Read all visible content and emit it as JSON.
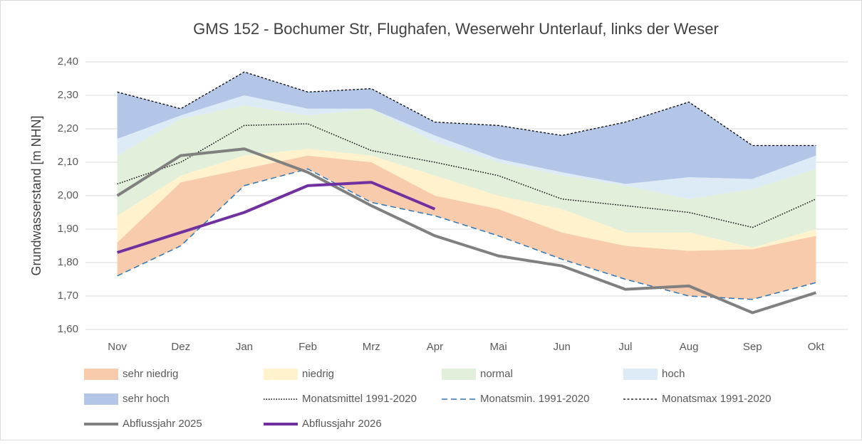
{
  "chart_data": {
    "type": "line",
    "title": "GMS 152 - Bochumer Str, Flughafen, Weserwehr Unterlauf, links der Weser",
    "y_label": "Grundwasserstand [m NHN]",
    "categories": [
      "Nov",
      "Dez",
      "Jan",
      "Feb",
      "Mrz",
      "Apr",
      "Mai",
      "Jun",
      "Jul",
      "Aug",
      "Sep",
      "Okt"
    ],
    "ylim": [
      1.6,
      2.4
    ],
    "yticks": [
      {
        "value": 1.6,
        "label": "1,60"
      },
      {
        "value": 1.7,
        "label": "1,70"
      },
      {
        "value": 1.8,
        "label": "1,80"
      },
      {
        "value": 1.9,
        "label": "1,90"
      },
      {
        "value": 2.0,
        "label": "2,00"
      },
      {
        "value": 2.1,
        "label": "2,10"
      },
      {
        "value": 2.2,
        "label": "2,20"
      },
      {
        "value": 2.3,
        "label": "2,30"
      },
      {
        "value": 2.4,
        "label": "2,40"
      }
    ],
    "grid": true,
    "legend": "bottom",
    "series": [
      {
        "name": "sehr niedrig",
        "type": "area",
        "color": "#f8cbad",
        "values": [
          0.1,
          0.19,
          0.05,
          0.04,
          0.12,
          0.06,
          0.08,
          0.08,
          0.1,
          0.135,
          0.15,
          0.14
        ]
      },
      {
        "name": "niedrig",
        "type": "area",
        "color": "#fff2cc",
        "values": [
          0.08,
          0.02,
          0.04,
          0.02,
          0.02,
          0.06,
          0.04,
          0.07,
          0.04,
          0.055,
          0.005,
          0.02
        ]
      },
      {
        "name": "normal",
        "type": "area",
        "color": "#e2efda",
        "values": [
          0.18,
          0.17,
          0.15,
          0.1,
          0.14,
          0.1,
          0.1,
          0.1,
          0.14,
          0.1,
          0.175,
          0.18
        ]
      },
      {
        "name": "hoch",
        "type": "area",
        "color": "#ddebf7",
        "values": [
          0.05,
          0.01,
          0.03,
          0.02,
          0,
          0.02,
          0.01,
          0.01,
          0.005,
          0.065,
          0.03,
          0.04
        ]
      },
      {
        "name": "sehr hoch",
        "type": "area",
        "color": "#b4c6e7",
        "values": [
          0.14,
          0.02,
          0.07,
          0.05,
          0.06,
          0.04,
          0.1,
          0.11,
          0.185,
          0.225,
          0.1,
          0.03
        ]
      },
      {
        "name": "Monatsmittel 1991-2020",
        "type": "line",
        "color": "#000000",
        "line_style": "dotted",
        "values": [
          2.035,
          2.1,
          2.21,
          2.215,
          2.135,
          2.1,
          2.06,
          1.99,
          1.97,
          1.95,
          1.905,
          1.99
        ]
      },
      {
        "name": "Monatsmin. 1991-2020",
        "type": "line",
        "color": "#2e75b6",
        "line_style": "dashed",
        "values": [
          1.76,
          1.85,
          2.03,
          2.08,
          1.98,
          1.94,
          1.88,
          1.81,
          1.75,
          1.7,
          1.69,
          1.74
        ]
      },
      {
        "name": "Monatsmax 1991-2020",
        "type": "line",
        "color": "#000000",
        "line_style": "short-dashed",
        "values": [
          2.31,
          2.26,
          2.37,
          2.31,
          2.32,
          2.22,
          2.21,
          2.18,
          2.22,
          2.28,
          2.15,
          2.15
        ]
      },
      {
        "name": "Abflussjahr 2025",
        "type": "line",
        "color": "#808080",
        "line_style": "solid",
        "values": [
          2.0,
          2.12,
          2.14,
          2.07,
          1.97,
          1.88,
          1.82,
          1.79,
          1.72,
          1.73,
          1.65,
          1.71
        ]
      },
      {
        "name": "Abflussjahr 2026",
        "type": "line",
        "color": "#7030a0",
        "line_style": "solid",
        "values": [
          1.83,
          1.89,
          1.95,
          2.03,
          2.04,
          1.96,
          null,
          null,
          null,
          null,
          null,
          null
        ]
      }
    ]
  }
}
